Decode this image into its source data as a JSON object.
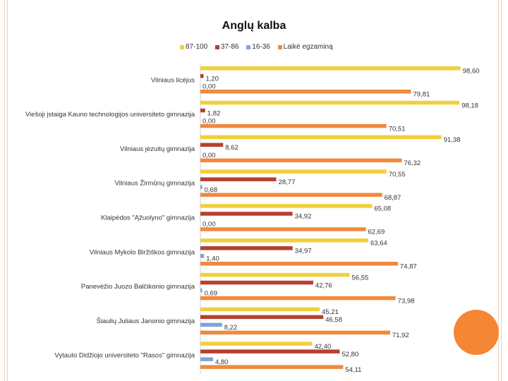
{
  "colors": {
    "decoration": "#f2c9b8",
    "circle": "#f58634"
  },
  "chart_data": {
    "type": "bar",
    "orientation": "horizontal",
    "title": "Anglų kalba",
    "legend_position": "top",
    "xlim": [
      0,
      100
    ],
    "grid": false,
    "categories": [
      "Vilniaus licėjus",
      "Viešoji įstaiga Kauno technologijos universiteto gimnazija",
      "Vilniaus jėzuitų gimnazija",
      "Vilniaus Žirmūnų gimnazija",
      "Klaipėdos \"Ąžuolyno\" gimnazija",
      "Vilniaus Mykolo Biržiškos gimnazija",
      "Panevėžio Juozo Balčikonio gimnazija",
      "Šiaulių Juliaus Janonio gimnazija",
      "Vytauto Didžiojo universiteto \"Rasos\" gimnazija"
    ],
    "series": [
      {
        "name": "87-100",
        "color": "#f2cf3a",
        "values": [
          98.6,
          98.18,
          91.38,
          70.55,
          65.08,
          63.64,
          56.55,
          45.21,
          42.4
        ],
        "labels": [
          "98,60",
          "98,18",
          "91,38",
          "70,55",
          "65,08",
          "63,64",
          "56,55",
          "45,21",
          "42,40"
        ]
      },
      {
        "name": "37-86",
        "color": "#b5412f",
        "values": [
          1.2,
          1.82,
          8.62,
          28.77,
          34.92,
          34.97,
          42.76,
          46.58,
          52.8
        ],
        "labels": [
          "1,20",
          "1,82",
          "8,62",
          "28,77",
          "34,92",
          "34,97",
          "42,76",
          "46,58",
          "52,80"
        ]
      },
      {
        "name": "16-36",
        "color": "#7fa3d6",
        "values": [
          0.0,
          0.0,
          0.0,
          0.68,
          0.0,
          1.4,
          0.69,
          8.22,
          4.8
        ],
        "labels": [
          "0,00",
          "0,00",
          "0,00",
          "0,68",
          "0,00",
          "1,40",
          "0,69",
          "8,22",
          "4,80"
        ]
      },
      {
        "name": "Laikė egzaminą",
        "color": "#f0893e",
        "values": [
          79.81,
          70.51,
          76.32,
          68.87,
          62.69,
          74.87,
          73.98,
          71.92,
          54.11
        ],
        "labels": [
          "79,81",
          "70,51",
          "76,32",
          "68,87",
          "62,69",
          "74,87",
          "73,98",
          "71,92",
          "54,11"
        ]
      }
    ]
  }
}
